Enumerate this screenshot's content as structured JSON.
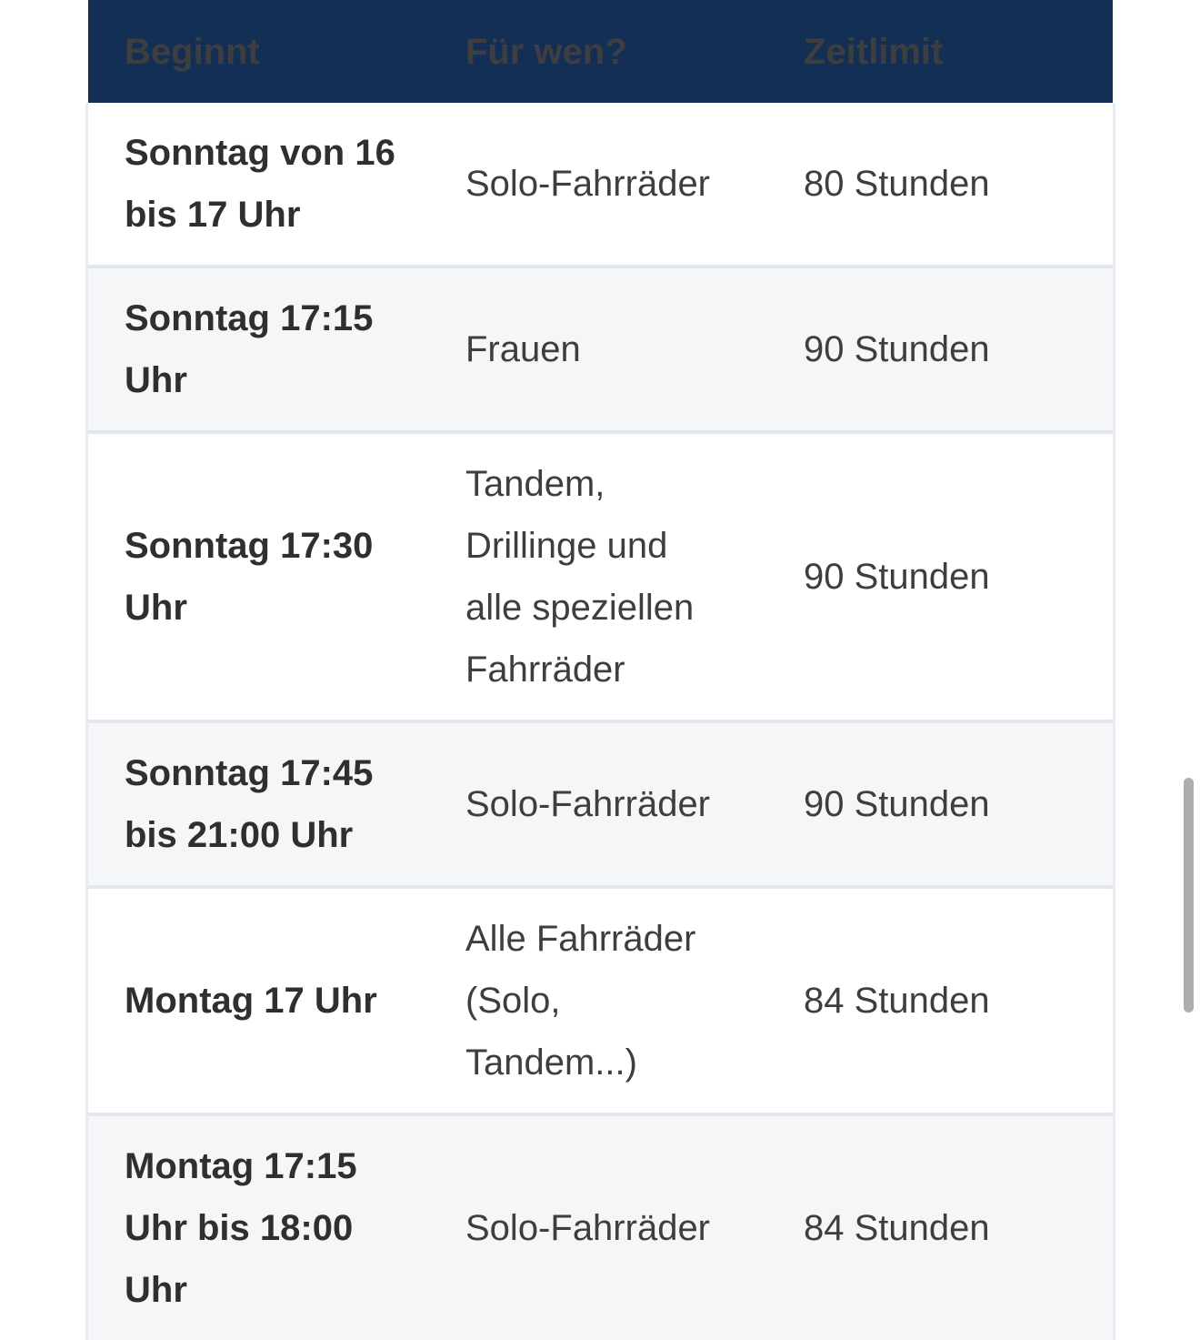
{
  "table": {
    "columns": [
      {
        "key": "beginnt",
        "label": "Beginnt"
      },
      {
        "key": "fuer_wen",
        "label": "Für wen?"
      },
      {
        "key": "zeitlimit",
        "label": "Zeitlimit"
      }
    ],
    "rows": [
      {
        "beginnt": "Sonntag von 16 bis 17 Uhr",
        "fuer_wen": "Solo-Fahrräder",
        "zeitlimit": "80 Stunden"
      },
      {
        "beginnt": "Sonntag 17:15 Uhr",
        "fuer_wen": "Frauen",
        "zeitlimit": "90 Stunden"
      },
      {
        "beginnt": "Sonntag 17:30 Uhr",
        "fuer_wen": "Tandem, Drillinge und alle speziellen Fahrräder",
        "zeitlimit": "90 Stunden"
      },
      {
        "beginnt": "Sonntag 17:45 bis 21:00 Uhr",
        "fuer_wen": "Solo-Fahrräder",
        "zeitlimit": "90 Stunden"
      },
      {
        "beginnt": "Montag 17 Uhr",
        "fuer_wen": "Alle Fahrräder (Solo, Tandem...)",
        "zeitlimit": "84 Stunden"
      },
      {
        "beginnt": "Montag 17:15 Uhr bis 18:00 Uhr",
        "fuer_wen": "Solo-Fahrräder",
        "zeitlimit": "84 Stunden"
      }
    ]
  },
  "scrollbar": {
    "present": true
  },
  "colors": {
    "header_bg": "#132f56",
    "header_text": "#ffffff",
    "row_bg": "#ffffff",
    "row_alt_bg": "#f4f6f8",
    "divider": "#e2e7ed",
    "text_bold": "#2f2f2f",
    "text_body": "#3e3e3e",
    "scrollbar": "#adadad"
  }
}
